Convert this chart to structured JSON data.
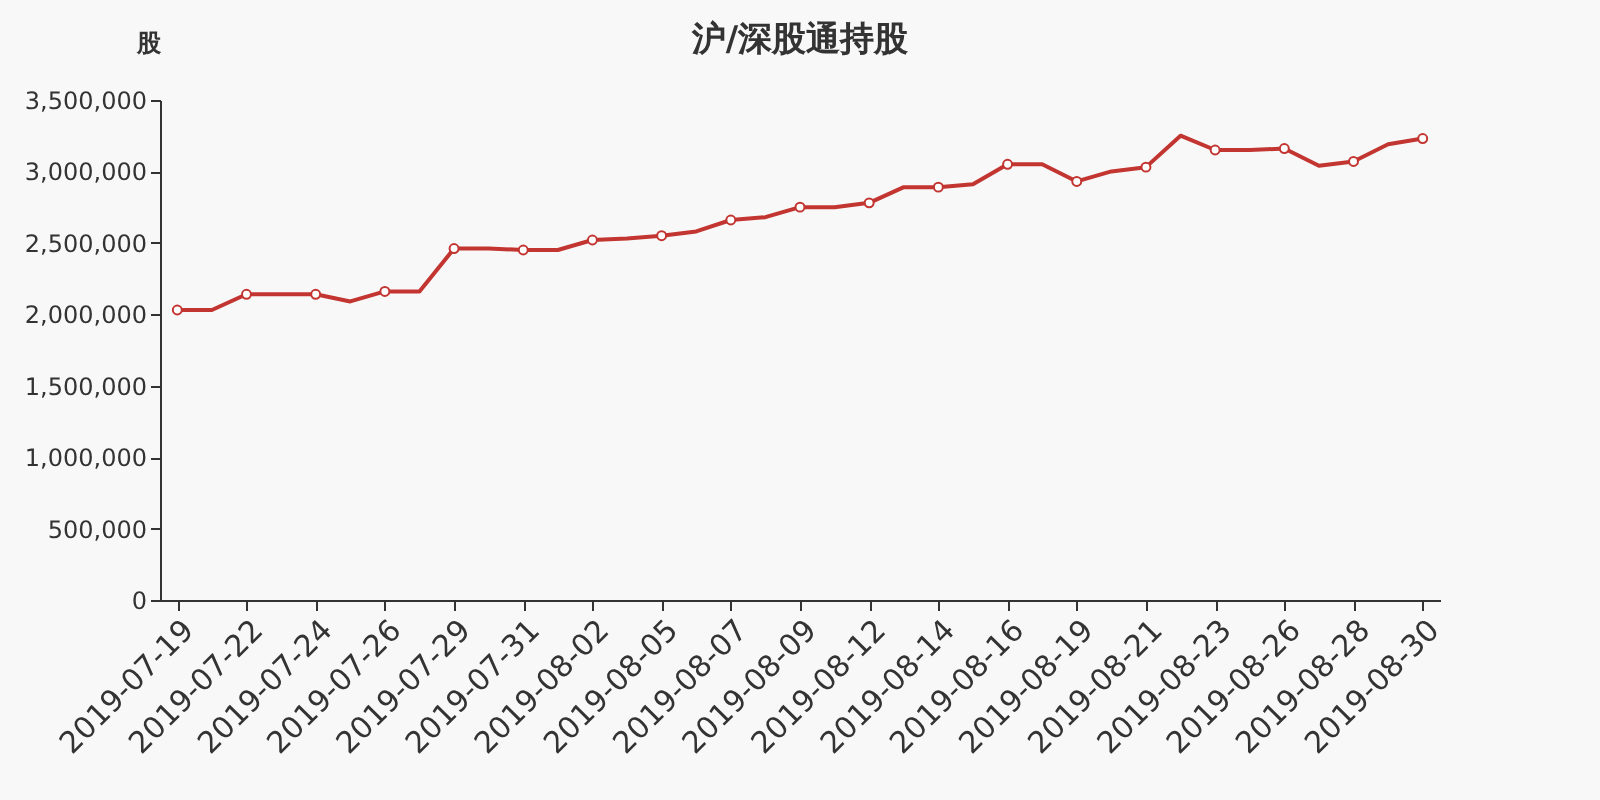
{
  "chart_data": {
    "type": "line",
    "title": "沪/深股通持股",
    "ylabel": "股",
    "categories": [
      "2019-07-19",
      null,
      "2019-07-22",
      null,
      "2019-07-24",
      null,
      "2019-07-26",
      null,
      "2019-07-29",
      null,
      "2019-07-31",
      null,
      "2019-08-02",
      null,
      "2019-08-05",
      null,
      "2019-08-07",
      null,
      "2019-08-09",
      null,
      "2019-08-12",
      null,
      "2019-08-14",
      null,
      "2019-08-16",
      null,
      "2019-08-19",
      null,
      "2019-08-21",
      null,
      "2019-08-23",
      null,
      "2019-08-26",
      null,
      "2019-08-28",
      null,
      "2019-08-30"
    ],
    "values": [
      2030000,
      2030000,
      2140000,
      2140000,
      2140000,
      2090000,
      2160000,
      2160000,
      2460000,
      2460000,
      2450000,
      2450000,
      2520000,
      2530000,
      2550000,
      2580000,
      2660000,
      2680000,
      2750000,
      2750000,
      2780000,
      2890000,
      2890000,
      2910000,
      3050000,
      3050000,
      2930000,
      3000000,
      3030000,
      3250000,
      3150000,
      3150000,
      3160000,
      3040000,
      3070000,
      3190000,
      3230000
    ],
    "color": "#c23531",
    "marker": "circle",
    "ylim": [
      0,
      3500000
    ],
    "yticks": [
      {
        "value": 0,
        "label": "0"
      },
      {
        "value": 500000,
        "label": "500,000"
      },
      {
        "value": 1000000,
        "label": "1,000,000"
      },
      {
        "value": 1500000,
        "label": "1,500,000"
      },
      {
        "value": 2000000,
        "label": "2,000,000"
      },
      {
        "value": 2500000,
        "label": "2,500,000"
      },
      {
        "value": 3000000,
        "label": "3,000,000"
      },
      {
        "value": 3500000,
        "label": "3,500,000"
      }
    ]
  }
}
